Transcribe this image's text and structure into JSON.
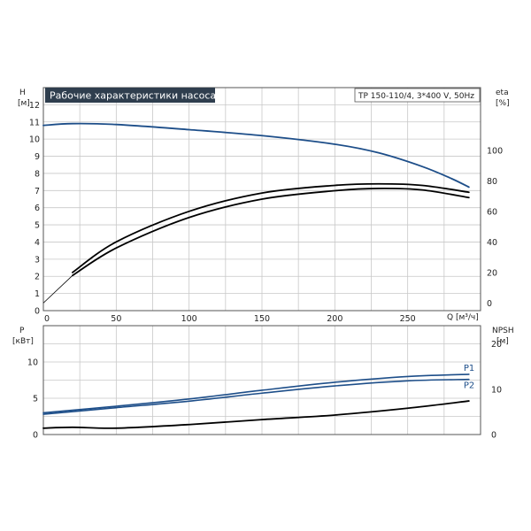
{
  "header": {
    "title": "Рабочие характеристики насоса",
    "info": "TP 150-110/4, 3*400 V, 50Hz"
  },
  "axes": {
    "h_label": "H",
    "h_unit": "[м]",
    "eta_label": "eta",
    "eta_unit": "[%]",
    "q_label": "Q [м³/ч]",
    "p_label": "P",
    "p_unit": "[кВт]",
    "npsh_label": "NPSH",
    "npsh_unit": "[м]"
  },
  "colors": {
    "blue": "#1d4e89",
    "black": "#000000",
    "grid": "#c8c8c8",
    "title_bg": "#2f3e4e"
  },
  "chart_data": [
    {
      "type": "line",
      "panel": "top",
      "x_ticks": [
        0,
        50,
        100,
        150,
        200,
        250
      ],
      "xlim": [
        0,
        300
      ],
      "ylim": [
        0,
        13
      ],
      "y_ticks": [
        0,
        1,
        2,
        3,
        4,
        5,
        6,
        7,
        8,
        9,
        10,
        11,
        12
      ],
      "y2lim": [
        -5,
        141
      ],
      "y2_ticks": [
        0,
        20,
        40,
        60,
        80,
        100
      ],
      "series": [
        {
          "role": "H",
          "axis": "left",
          "color": "#1d4e89",
          "x": [
            0,
            20,
            50,
            100,
            150,
            200,
            230,
            260,
            280,
            292
          ],
          "y": [
            10.8,
            10.9,
            10.85,
            10.55,
            10.2,
            9.7,
            9.2,
            8.4,
            7.7,
            7.2
          ]
        },
        {
          "role": "eta-1",
          "axis": "right",
          "color": "#000000",
          "x": [
            20,
            50,
            100,
            150,
            200,
            230,
            260,
            292
          ],
          "y": [
            18,
            36,
            56,
            68,
            73.5,
            75,
            74,
            69
          ]
        },
        {
          "role": "eta-2",
          "axis": "right",
          "color": "#000000",
          "x": [
            20,
            50,
            100,
            150,
            200,
            230,
            260,
            292
          ],
          "y": [
            20,
            40,
            60,
            72,
            77,
            78,
            77,
            72.5
          ]
        }
      ]
    },
    {
      "type": "line",
      "panel": "bottom",
      "xlim": [
        0,
        300
      ],
      "ylim": [
        0,
        15
      ],
      "y_ticks": [
        0,
        5,
        10
      ],
      "y2lim": [
        0,
        24
      ],
      "y2_ticks": [
        0,
        10,
        20
      ],
      "series": [
        {
          "name": "P1",
          "axis": "left",
          "color": "#1d4e89",
          "x": [
            0,
            50,
            100,
            150,
            200,
            250,
            292
          ],
          "y": [
            3.0,
            3.9,
            4.9,
            6.1,
            7.2,
            8.0,
            8.3
          ]
        },
        {
          "name": "P2",
          "axis": "left",
          "color": "#1d4e89",
          "x": [
            0,
            50,
            100,
            150,
            200,
            250,
            292
          ],
          "y": [
            2.8,
            3.7,
            4.6,
            5.7,
            6.7,
            7.4,
            7.6
          ]
        },
        {
          "role": "NPSH",
          "axis": "right",
          "color": "#000000",
          "x": [
            0,
            20,
            50,
            100,
            150,
            200,
            250,
            292
          ],
          "y": [
            1.4,
            1.6,
            1.4,
            2.2,
            3.3,
            4.3,
            5.8,
            7.4
          ]
        }
      ]
    }
  ]
}
